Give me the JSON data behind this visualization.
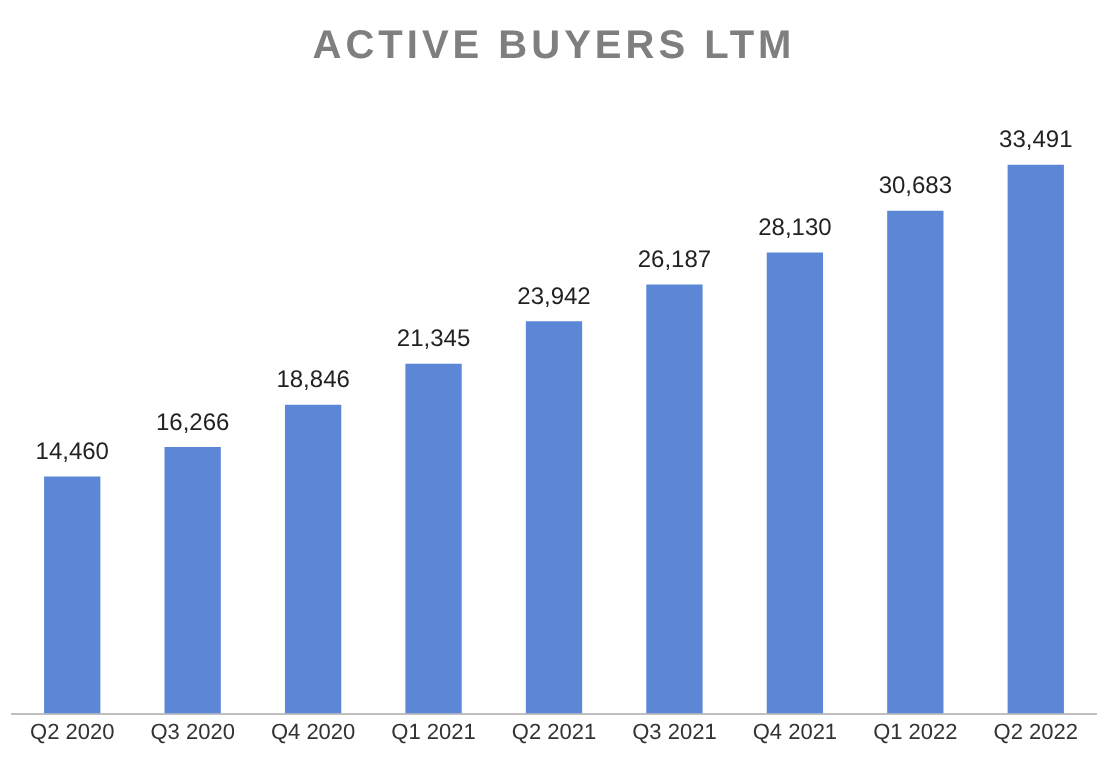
{
  "chart_data": {
    "type": "bar",
    "title": "ACTIVE BUYERS LTM",
    "categories": [
      "Q2 2020",
      "Q3 2020",
      "Q4 2020",
      "Q1 2021",
      "Q2 2021",
      "Q3 2021",
      "Q4 2021",
      "Q1 2022",
      "Q2 2022"
    ],
    "values": [
      14460,
      16266,
      18846,
      21345,
      23942,
      26187,
      28130,
      30683,
      33491
    ],
    "value_labels": [
      "14,460",
      "16,266",
      "18,846",
      "21,345",
      "23,942",
      "26,187",
      "28,130",
      "30,683",
      "33,491"
    ],
    "color": "#5b87d6",
    "grid": false,
    "legend": false
  }
}
